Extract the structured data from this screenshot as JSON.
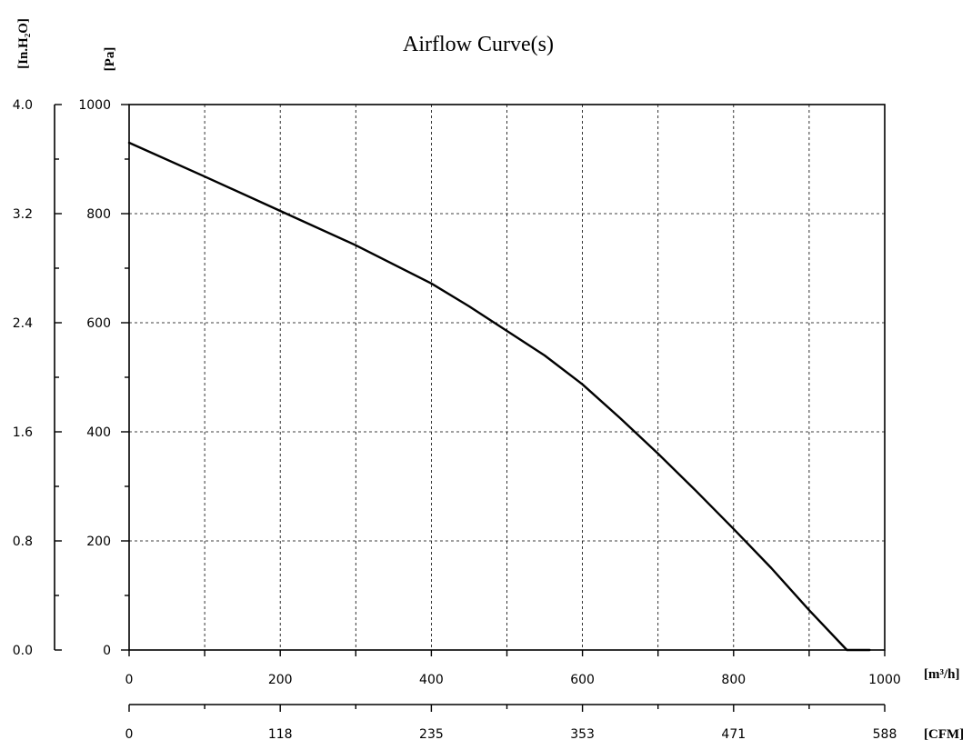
{
  "chart_data": {
    "type": "line",
    "title": "Airflow Curve(s)",
    "x_axis": {
      "unit_label": "[m³/h]",
      "range": [
        0,
        1000
      ],
      "ticks": [
        0,
        200,
        400,
        600,
        800,
        1000
      ],
      "grid_step": 100
    },
    "x2_axis": {
      "unit_label": "[CFM]",
      "tick_labels": [
        "0",
        "118",
        "235",
        "353",
        "471",
        "588"
      ]
    },
    "y_axis": {
      "unit_label": "[Pa]",
      "range": [
        0,
        1000
      ],
      "ticks": [
        0,
        200,
        400,
        600,
        800,
        1000
      ],
      "grid_step": 200
    },
    "y2_axis": {
      "unit_label": "[In.H₂O]",
      "tick_labels": [
        "0.0",
        "0.8",
        "1.6",
        "2.4",
        "3.2",
        "4.0"
      ]
    },
    "grid": true,
    "series": [
      {
        "x": [
          0,
          100,
          200,
          300,
          400,
          450,
          500,
          550,
          600,
          650,
          700,
          750,
          800,
          850,
          900,
          950,
          980
        ],
        "y": [
          930,
          868,
          805,
          742,
          672,
          630,
          585,
          540,
          487,
          425,
          360,
          292,
          222,
          150,
          73,
          -5,
          -5
        ]
      }
    ]
  }
}
